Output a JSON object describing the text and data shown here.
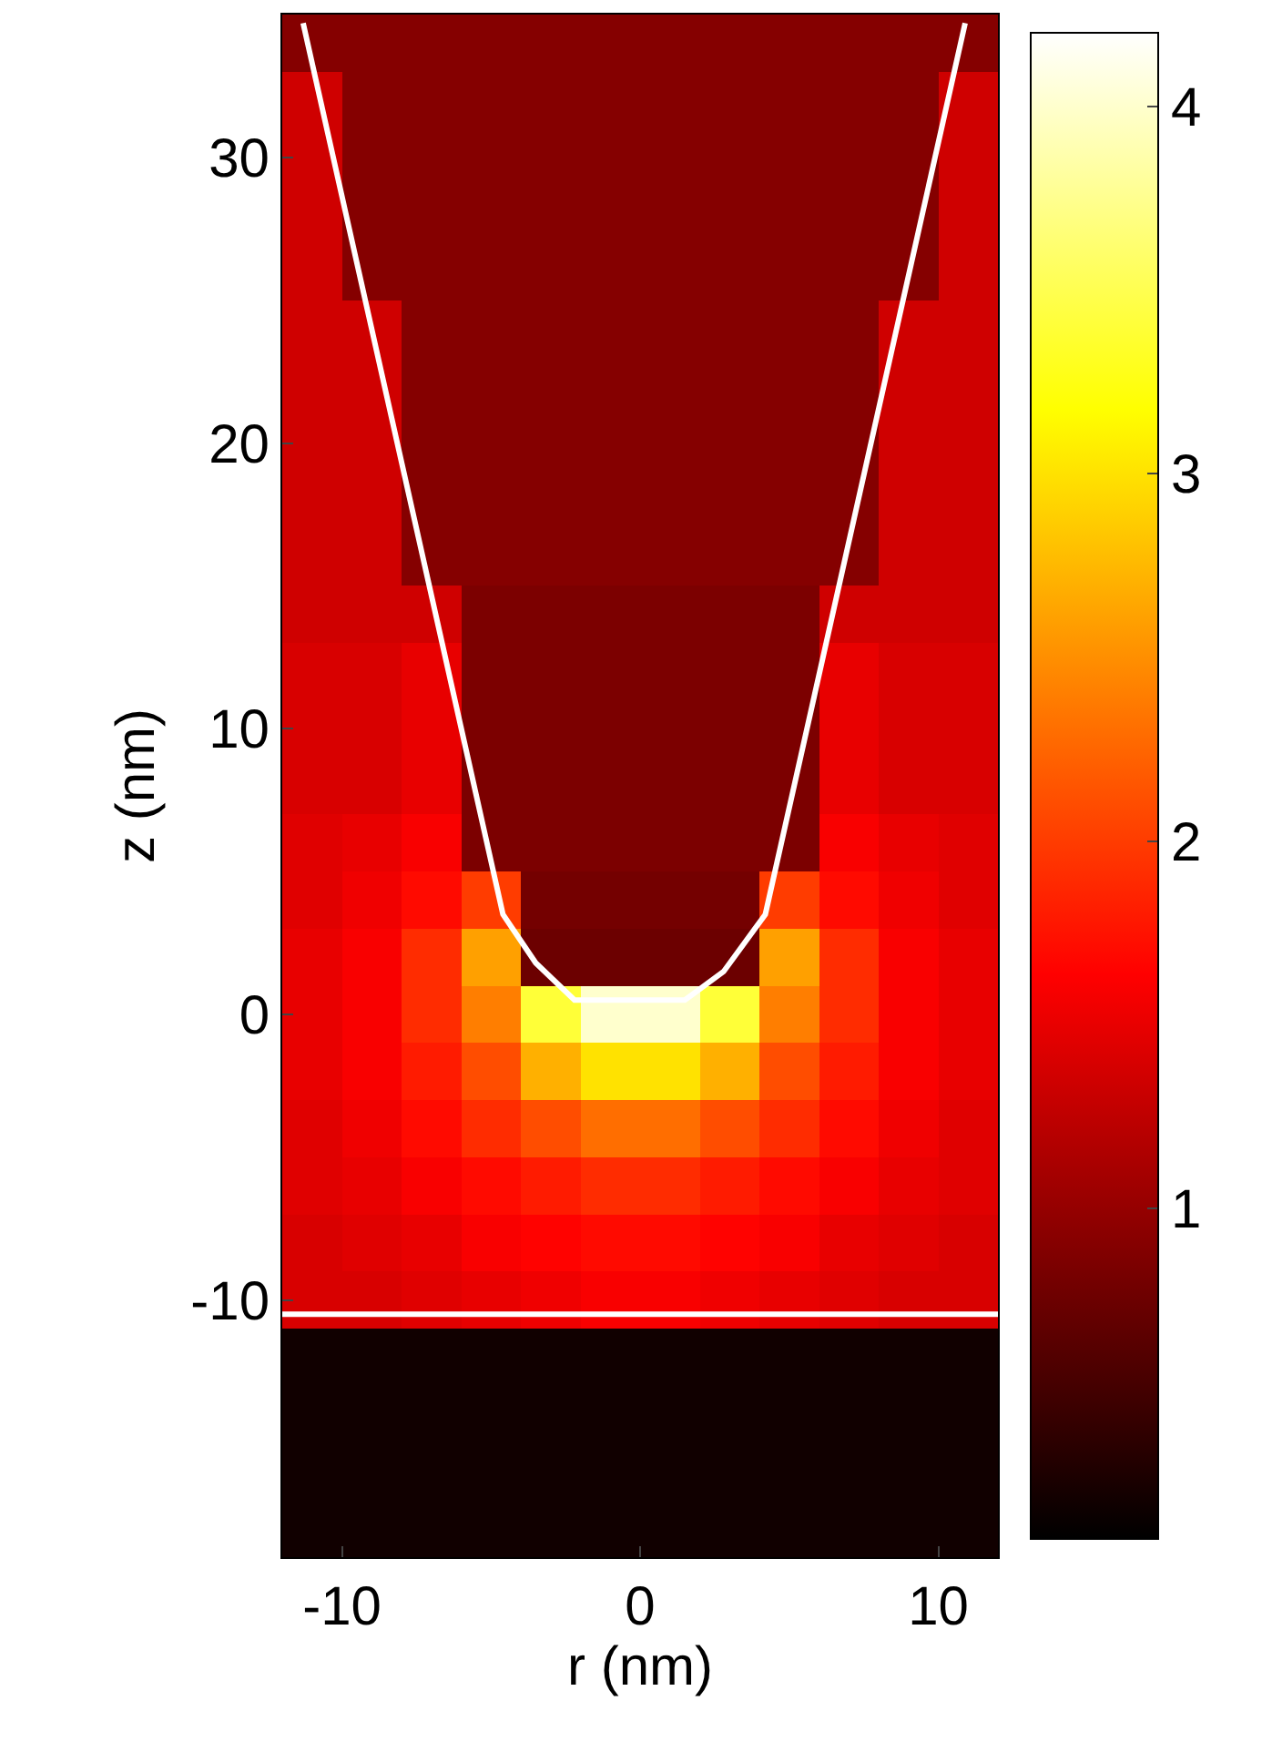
{
  "chart_data": {
    "type": "heatmap",
    "xlabel": "r (nm)",
    "ylabel": "z (nm)",
    "x": [
      -11,
      -9,
      -7,
      -5,
      -3,
      -1,
      1,
      3,
      5,
      7,
      9,
      11
    ],
    "y": [
      34,
      32,
      30,
      28,
      26,
      24,
      22,
      20,
      18,
      16,
      14,
      12,
      10,
      8,
      6,
      4,
      2,
      0,
      -2,
      -4,
      -6,
      -8,
      -10,
      -12,
      -14,
      -16,
      -18
    ],
    "cells": [
      [
        0.9,
        0.9,
        0.9,
        0.9,
        0.9,
        0.9,
        0.9,
        0.9,
        0.9,
        0.9,
        0.9,
        0.9
      ],
      [
        1.35,
        0.9,
        0.9,
        0.9,
        0.9,
        0.9,
        0.9,
        0.9,
        0.9,
        0.9,
        0.9,
        1.35
      ],
      [
        1.35,
        0.9,
        0.9,
        0.9,
        0.9,
        0.9,
        0.9,
        0.9,
        0.9,
        0.9,
        0.9,
        1.35
      ],
      [
        1.35,
        0.9,
        0.9,
        0.9,
        0.9,
        0.9,
        0.9,
        0.9,
        0.9,
        0.9,
        0.9,
        1.35
      ],
      [
        1.35,
        0.9,
        0.9,
        0.9,
        0.9,
        0.9,
        0.9,
        0.9,
        0.9,
        0.9,
        0.9,
        1.35
      ],
      [
        1.35,
        1.35,
        0.9,
        0.9,
        0.9,
        0.9,
        0.9,
        0.9,
        0.9,
        0.9,
        1.35,
        1.35
      ],
      [
        1.35,
        1.35,
        0.9,
        0.9,
        0.9,
        0.9,
        0.9,
        0.9,
        0.9,
        0.9,
        1.35,
        1.35
      ],
      [
        1.35,
        1.35,
        0.9,
        0.9,
        0.9,
        0.9,
        0.9,
        0.9,
        0.9,
        0.9,
        1.35,
        1.35
      ],
      [
        1.35,
        1.35,
        0.9,
        0.9,
        0.9,
        0.9,
        0.9,
        0.9,
        0.9,
        0.9,
        1.35,
        1.35
      ],
      [
        1.35,
        1.35,
        0.9,
        0.9,
        0.9,
        0.9,
        0.9,
        0.9,
        0.9,
        0.9,
        1.35,
        1.35
      ],
      [
        1.35,
        1.35,
        1.35,
        0.85,
        0.85,
        0.85,
        0.85,
        0.85,
        0.85,
        1.35,
        1.35,
        1.35
      ],
      [
        1.4,
        1.4,
        1.5,
        0.85,
        0.85,
        0.85,
        0.85,
        0.85,
        0.85,
        1.5,
        1.4,
        1.4
      ],
      [
        1.4,
        1.4,
        1.5,
        0.85,
        0.85,
        0.85,
        0.85,
        0.85,
        0.85,
        1.5,
        1.4,
        1.4
      ],
      [
        1.4,
        1.4,
        1.5,
        0.85,
        0.85,
        0.85,
        0.85,
        0.85,
        0.85,
        1.5,
        1.4,
        1.4
      ],
      [
        1.45,
        1.5,
        1.6,
        0.85,
        0.85,
        0.85,
        0.85,
        0.85,
        0.85,
        1.6,
        1.5,
        1.45
      ],
      [
        1.45,
        1.55,
        1.7,
        2.0,
        0.8,
        0.8,
        0.8,
        0.8,
        2.0,
        1.7,
        1.55,
        1.45
      ],
      [
        1.5,
        1.6,
        1.9,
        2.6,
        0.75,
        0.75,
        0.75,
        0.75,
        2.6,
        1.9,
        1.6,
        1.5
      ],
      [
        1.5,
        1.6,
        1.9,
        2.4,
        3.4,
        4.0,
        4.0,
        3.4,
        2.4,
        1.9,
        1.6,
        1.5
      ],
      [
        1.5,
        1.6,
        1.8,
        2.1,
        2.7,
        3.0,
        3.0,
        2.7,
        2.1,
        1.8,
        1.6,
        1.5
      ],
      [
        1.45,
        1.55,
        1.7,
        1.9,
        2.1,
        2.3,
        2.3,
        2.1,
        1.9,
        1.7,
        1.55,
        1.45
      ],
      [
        1.45,
        1.5,
        1.6,
        1.7,
        1.8,
        1.9,
        1.9,
        1.8,
        1.7,
        1.6,
        1.5,
        1.45
      ],
      [
        1.4,
        1.45,
        1.5,
        1.6,
        1.65,
        1.7,
        1.7,
        1.65,
        1.6,
        1.5,
        1.45,
        1.4
      ],
      [
        1.4,
        1.4,
        1.45,
        1.5,
        1.55,
        1.6,
        1.6,
        1.55,
        1.5,
        1.45,
        1.4,
        1.4
      ],
      [
        0.2,
        0.2,
        0.2,
        0.2,
        0.2,
        0.2,
        0.2,
        0.2,
        0.2,
        0.2,
        0.2,
        0.2
      ],
      [
        0.2,
        0.2,
        0.2,
        0.2,
        0.2,
        0.2,
        0.2,
        0.2,
        0.2,
        0.2,
        0.2,
        0.2
      ],
      [
        0.2,
        0.2,
        0.2,
        0.2,
        0.2,
        0.2,
        0.2,
        0.2,
        0.2,
        0.2,
        0.2,
        0.2
      ],
      [
        0.2,
        0.2,
        0.2,
        0.2,
        0.2,
        0.2,
        0.2,
        0.2,
        0.2,
        0.2,
        0.2,
        0.2
      ]
    ],
    "clim": [
      0.1,
      4.2
    ],
    "cticks": [
      1,
      2,
      3,
      4
    ],
    "series": [
      {
        "type": "line",
        "color": "#ffffff",
        "x": [
          -11.3,
          -4.6,
          -3.5,
          -2.2,
          1.5,
          2.8,
          4.2,
          10.9
        ],
        "values": [
          34.7,
          3.5,
          1.8,
          0.5,
          0.5,
          1.5,
          3.5,
          34.7
        ]
      }
    ],
    "ref_lines": [
      {
        "axis": "y",
        "value": -10.5,
        "color": "#ffffff"
      }
    ],
    "xlim": [
      -12,
      12
    ],
    "ylim": [
      -19,
      35
    ],
    "xticks": [
      -10,
      0,
      10
    ],
    "yticks": [
      -10,
      0,
      10,
      20,
      30
    ]
  }
}
